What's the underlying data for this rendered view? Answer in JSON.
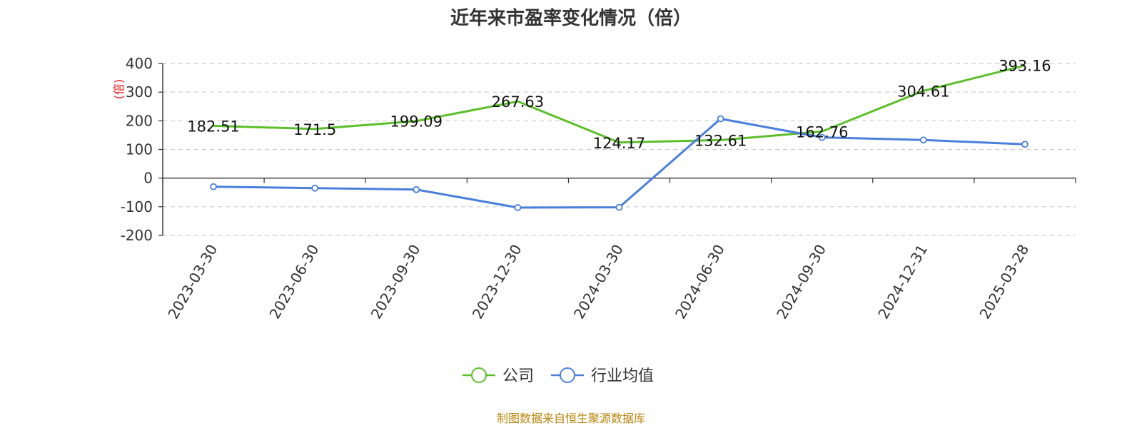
{
  "chart_data": {
    "type": "line",
    "title": "近年来市盈率变化情况（倍）",
    "ylabel": "(倍)",
    "xlabel": "",
    "categories": [
      "2023-03-30",
      "2023-06-30",
      "2023-09-30",
      "2023-12-30",
      "2024-03-30",
      "2024-06-30",
      "2024-09-30",
      "2024-12-31",
      "2025-03-28"
    ],
    "ylim": [
      -200,
      400
    ],
    "yticks": [
      400,
      300,
      200,
      100,
      0,
      -100,
      -200
    ],
    "grid": true,
    "legend_position": "bottom-center",
    "series": [
      {
        "name": "公司",
        "color": "#5cbf2a",
        "values": [
          182.51,
          171.5,
          199.09,
          267.63,
          124.17,
          132.61,
          162.76,
          304.61,
          393.16
        ],
        "labels": [
          "182.51",
          "171.5",
          "199.09",
          "267.63",
          "124.17",
          "132.61",
          "162.76",
          "304.61",
          "393.16"
        ]
      },
      {
        "name": "行业均值",
        "color": "#4a7fdc",
        "values": [
          -30,
          -35,
          -40,
          -103,
          -102,
          207,
          142,
          133,
          118
        ]
      }
    ],
    "source": "制图数据来自恒生聚源数据库"
  }
}
